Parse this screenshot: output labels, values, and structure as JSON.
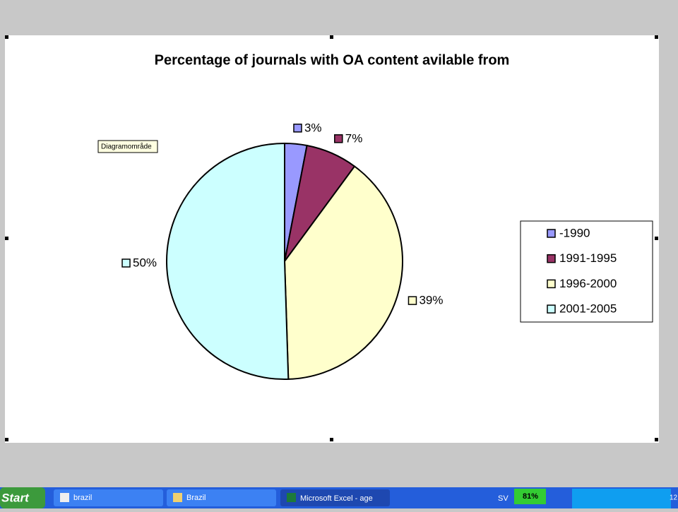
{
  "chart_data": {
    "type": "pie",
    "title": "Percentage of journals with OA content avilable from",
    "categories": [
      "-1990",
      "1991-1995",
      "1996-2000",
      "2001-2005"
    ],
    "values": [
      3,
      7,
      39,
      50
    ],
    "value_labels": [
      "3%",
      "7%",
      "39%",
      "50%"
    ],
    "colors": [
      "#9999ff",
      "#993366",
      "#ffffcc",
      "#ccffff"
    ],
    "legend": "right"
  },
  "window": {
    "tooltip": "Diagramområde"
  },
  "taskbar": {
    "start": "Start",
    "items": [
      "brazil",
      "Brazil",
      "Microsoft Excel - age"
    ],
    "language": "SV",
    "battery": "81%",
    "clock": "12"
  }
}
